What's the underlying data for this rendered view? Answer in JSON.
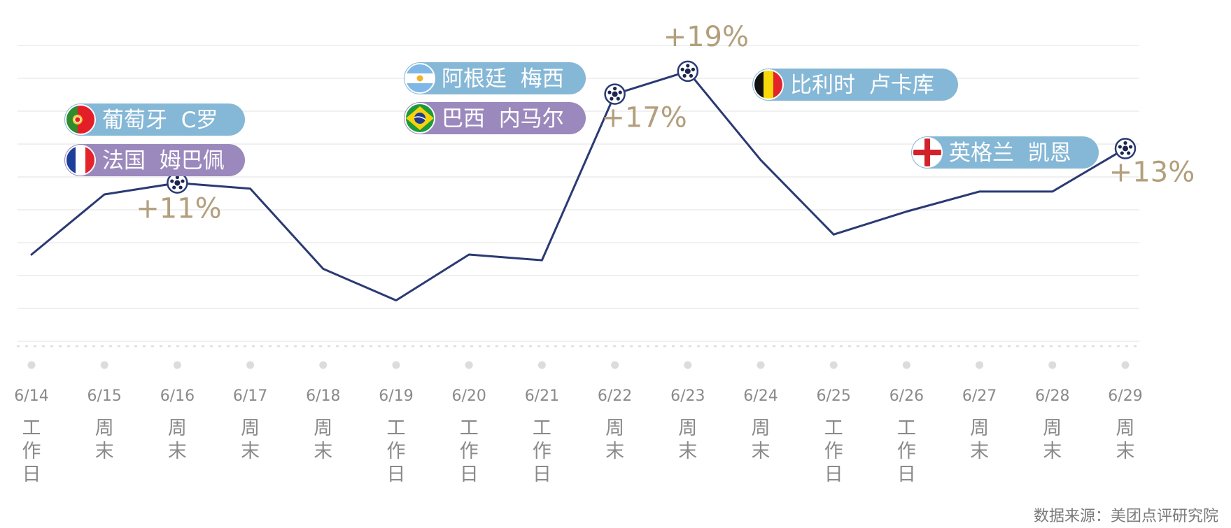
{
  "chart_data": {
    "type": "line",
    "categories": [
      "6/14",
      "6/15",
      "6/16",
      "6/17",
      "6/18",
      "6/19",
      "6/20",
      "6/21",
      "6/22",
      "6/23",
      "6/24",
      "6/25",
      "6/26",
      "6/27",
      "6/28",
      "6/29"
    ],
    "day_types": [
      "工作日",
      "周末",
      "周末",
      "周末",
      "周末",
      "工作日",
      "工作日",
      "工作日",
      "周末",
      "周末",
      "周末",
      "工作日",
      "工作日",
      "周末",
      "周末",
      "周末"
    ],
    "values": [
      62,
      83,
      87,
      85,
      57,
      46,
      62,
      60,
      118,
      126,
      95,
      69,
      77,
      84,
      84,
      99
    ],
    "ylim": [
      30,
      135
    ],
    "grid": true,
    "line_color": "#2b3a73",
    "peak_points": [
      {
        "index": 2,
        "label": "+11%"
      },
      {
        "index": 8,
        "label": "+17%"
      },
      {
        "index": 9,
        "label": "+19%"
      },
      {
        "index": 15,
        "label": "+13%"
      }
    ],
    "teams": [
      {
        "text": "葡萄牙  C罗",
        "flag": "portugal",
        "color": "#85b7d6"
      },
      {
        "text": "法国  姆巴佩",
        "flag": "france",
        "color": "#9b89bd"
      },
      {
        "text": "阿根廷  梅西",
        "flag": "argentina",
        "color": "#85b7d6"
      },
      {
        "text": "巴西  内马尔",
        "flag": "brazil",
        "color": "#9b89bd"
      },
      {
        "text": "比利时  卢卡库",
        "flag": "belgium",
        "color": "#85b7d6"
      },
      {
        "text": "英格兰  凯恩",
        "flag": "england",
        "color": "#85b7d6"
      }
    ],
    "pct_color": "#b39f7d"
  },
  "source": "数据来源：美团点评研究院"
}
